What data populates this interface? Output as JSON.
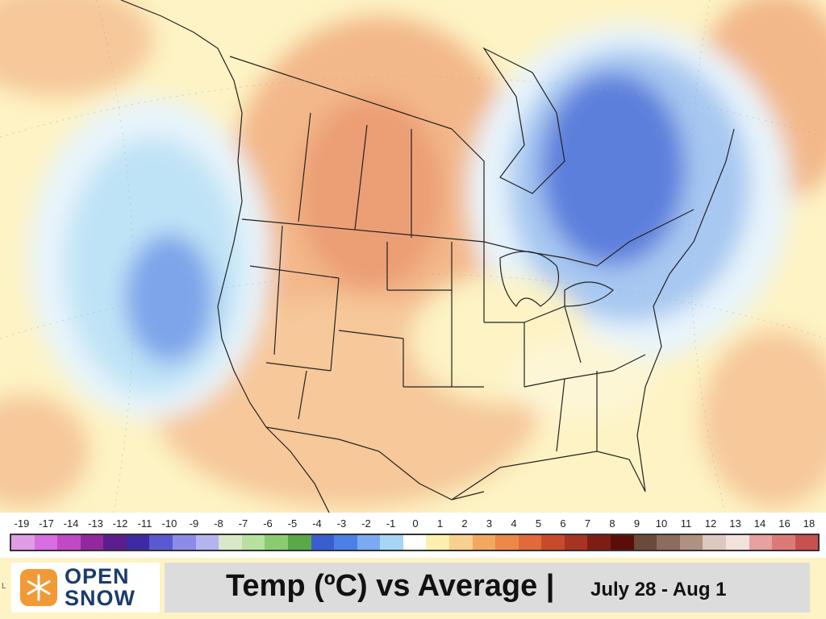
{
  "map": {
    "region": "North America",
    "colors": {
      "ocean_base": "#fdf3c4",
      "warm_light": "#f9d6a4",
      "warm_mid": "#f3b88a",
      "warm_strong": "#ec9e74",
      "cool_light": "#e8f4fb",
      "cool_mid": "#bfe3f6",
      "cool_strong": "#7ea4ea",
      "cool_deep": "#5d7fdc",
      "boundary": "#222222"
    }
  },
  "legend": {
    "labels": [
      "-19",
      "-17",
      "-14",
      "-13",
      "-12",
      "-11",
      "-10",
      "-9",
      "-8",
      "-7",
      "-6",
      "-5",
      "-4",
      "-3",
      "-2",
      "-1",
      "0",
      "1",
      "2",
      "3",
      "4",
      "5",
      "6",
      "7",
      "8",
      "9",
      "10",
      "11",
      "12",
      "13",
      "14",
      "16",
      "18"
    ],
    "colors": [
      "#e29ce6",
      "#d86ee0",
      "#c04ac6",
      "#92289c",
      "#5b1e8c",
      "#3e2aa4",
      "#5a5ad0",
      "#8c8ce8",
      "#b4b4f0",
      "#d8e8c8",
      "#b8e0a0",
      "#8ccc70",
      "#5aa848",
      "#3a5ed0",
      "#4c80e6",
      "#7caaf0",
      "#a8d4f6",
      "#ffffff",
      "#fdf0b0",
      "#f8d090",
      "#f2a860",
      "#ec8848",
      "#e06a3a",
      "#c84a2a",
      "#a63420",
      "#7c1e14",
      "#5a0e0a",
      "#6a4a3c",
      "#8c6c5c",
      "#b09080",
      "#ddc8c0",
      "#f2e2dc",
      "#e8a0a0",
      "#dc7a7a",
      "#c85050"
    ]
  },
  "footer": {
    "logo_text_line1": "OPEN",
    "logo_text_line2": "SNOW",
    "logo_colors": {
      "orange": "#f19a35",
      "navy": "#1b3c6b"
    },
    "title": "Temp (ºC) vs Average |",
    "date_range": "July 28 - Aug 1",
    "edge_mark": "L"
  }
}
